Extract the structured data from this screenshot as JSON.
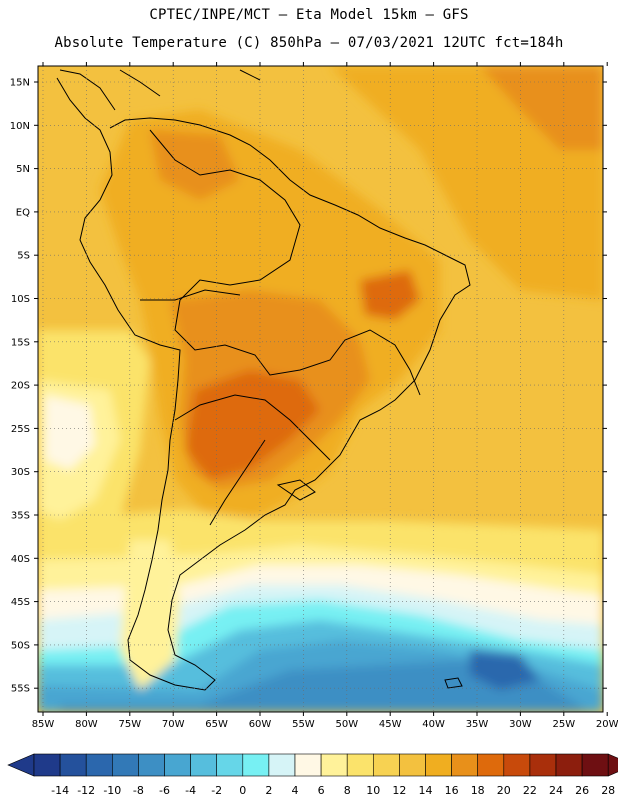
{
  "header": {
    "line1": "CPTEC/INPE/MCT –  Eta Model 15km – GFS",
    "line2": "Absolute Temperature (C) 850hPa – 07/03/2021 12UTC fct=184h"
  },
  "map": {
    "lat_labels": [
      "15N",
      "10N",
      "5N",
      "EQ",
      "5S",
      "10S",
      "15S",
      "20S",
      "25S",
      "30S",
      "35S",
      "40S",
      "45S",
      "50S",
      "55S"
    ],
    "lon_labels": [
      "85W",
      "80W",
      "75W",
      "70W",
      "65W",
      "60W",
      "55W",
      "50W",
      "45W",
      "40W",
      "35W",
      "30W",
      "25W",
      "20W"
    ]
  },
  "colorbar": {
    "colors": [
      "#1f3a8a",
      "#24519c",
      "#2b67ad",
      "#3279b7",
      "#3d8fc4",
      "#48a6d1",
      "#56bedd",
      "#66d6e8",
      "#77f0f3",
      "#d6f4f7",
      "#fff8e5",
      "#fff29a",
      "#fbe36b",
      "#f7d252",
      "#f3c13f",
      "#f0ae20",
      "#e8901a",
      "#de6a0c",
      "#c84a0b",
      "#a92f0b",
      "#8c1e0d",
      "#6e0f12"
    ],
    "labels": [
      "-14",
      "-12",
      "-10",
      "-8",
      "-6",
      "-4",
      "-2",
      "0",
      "2",
      "4",
      "6",
      "8",
      "10",
      "12",
      "14",
      "16",
      "18",
      "20",
      "22",
      "24",
      "26",
      "28"
    ]
  }
}
